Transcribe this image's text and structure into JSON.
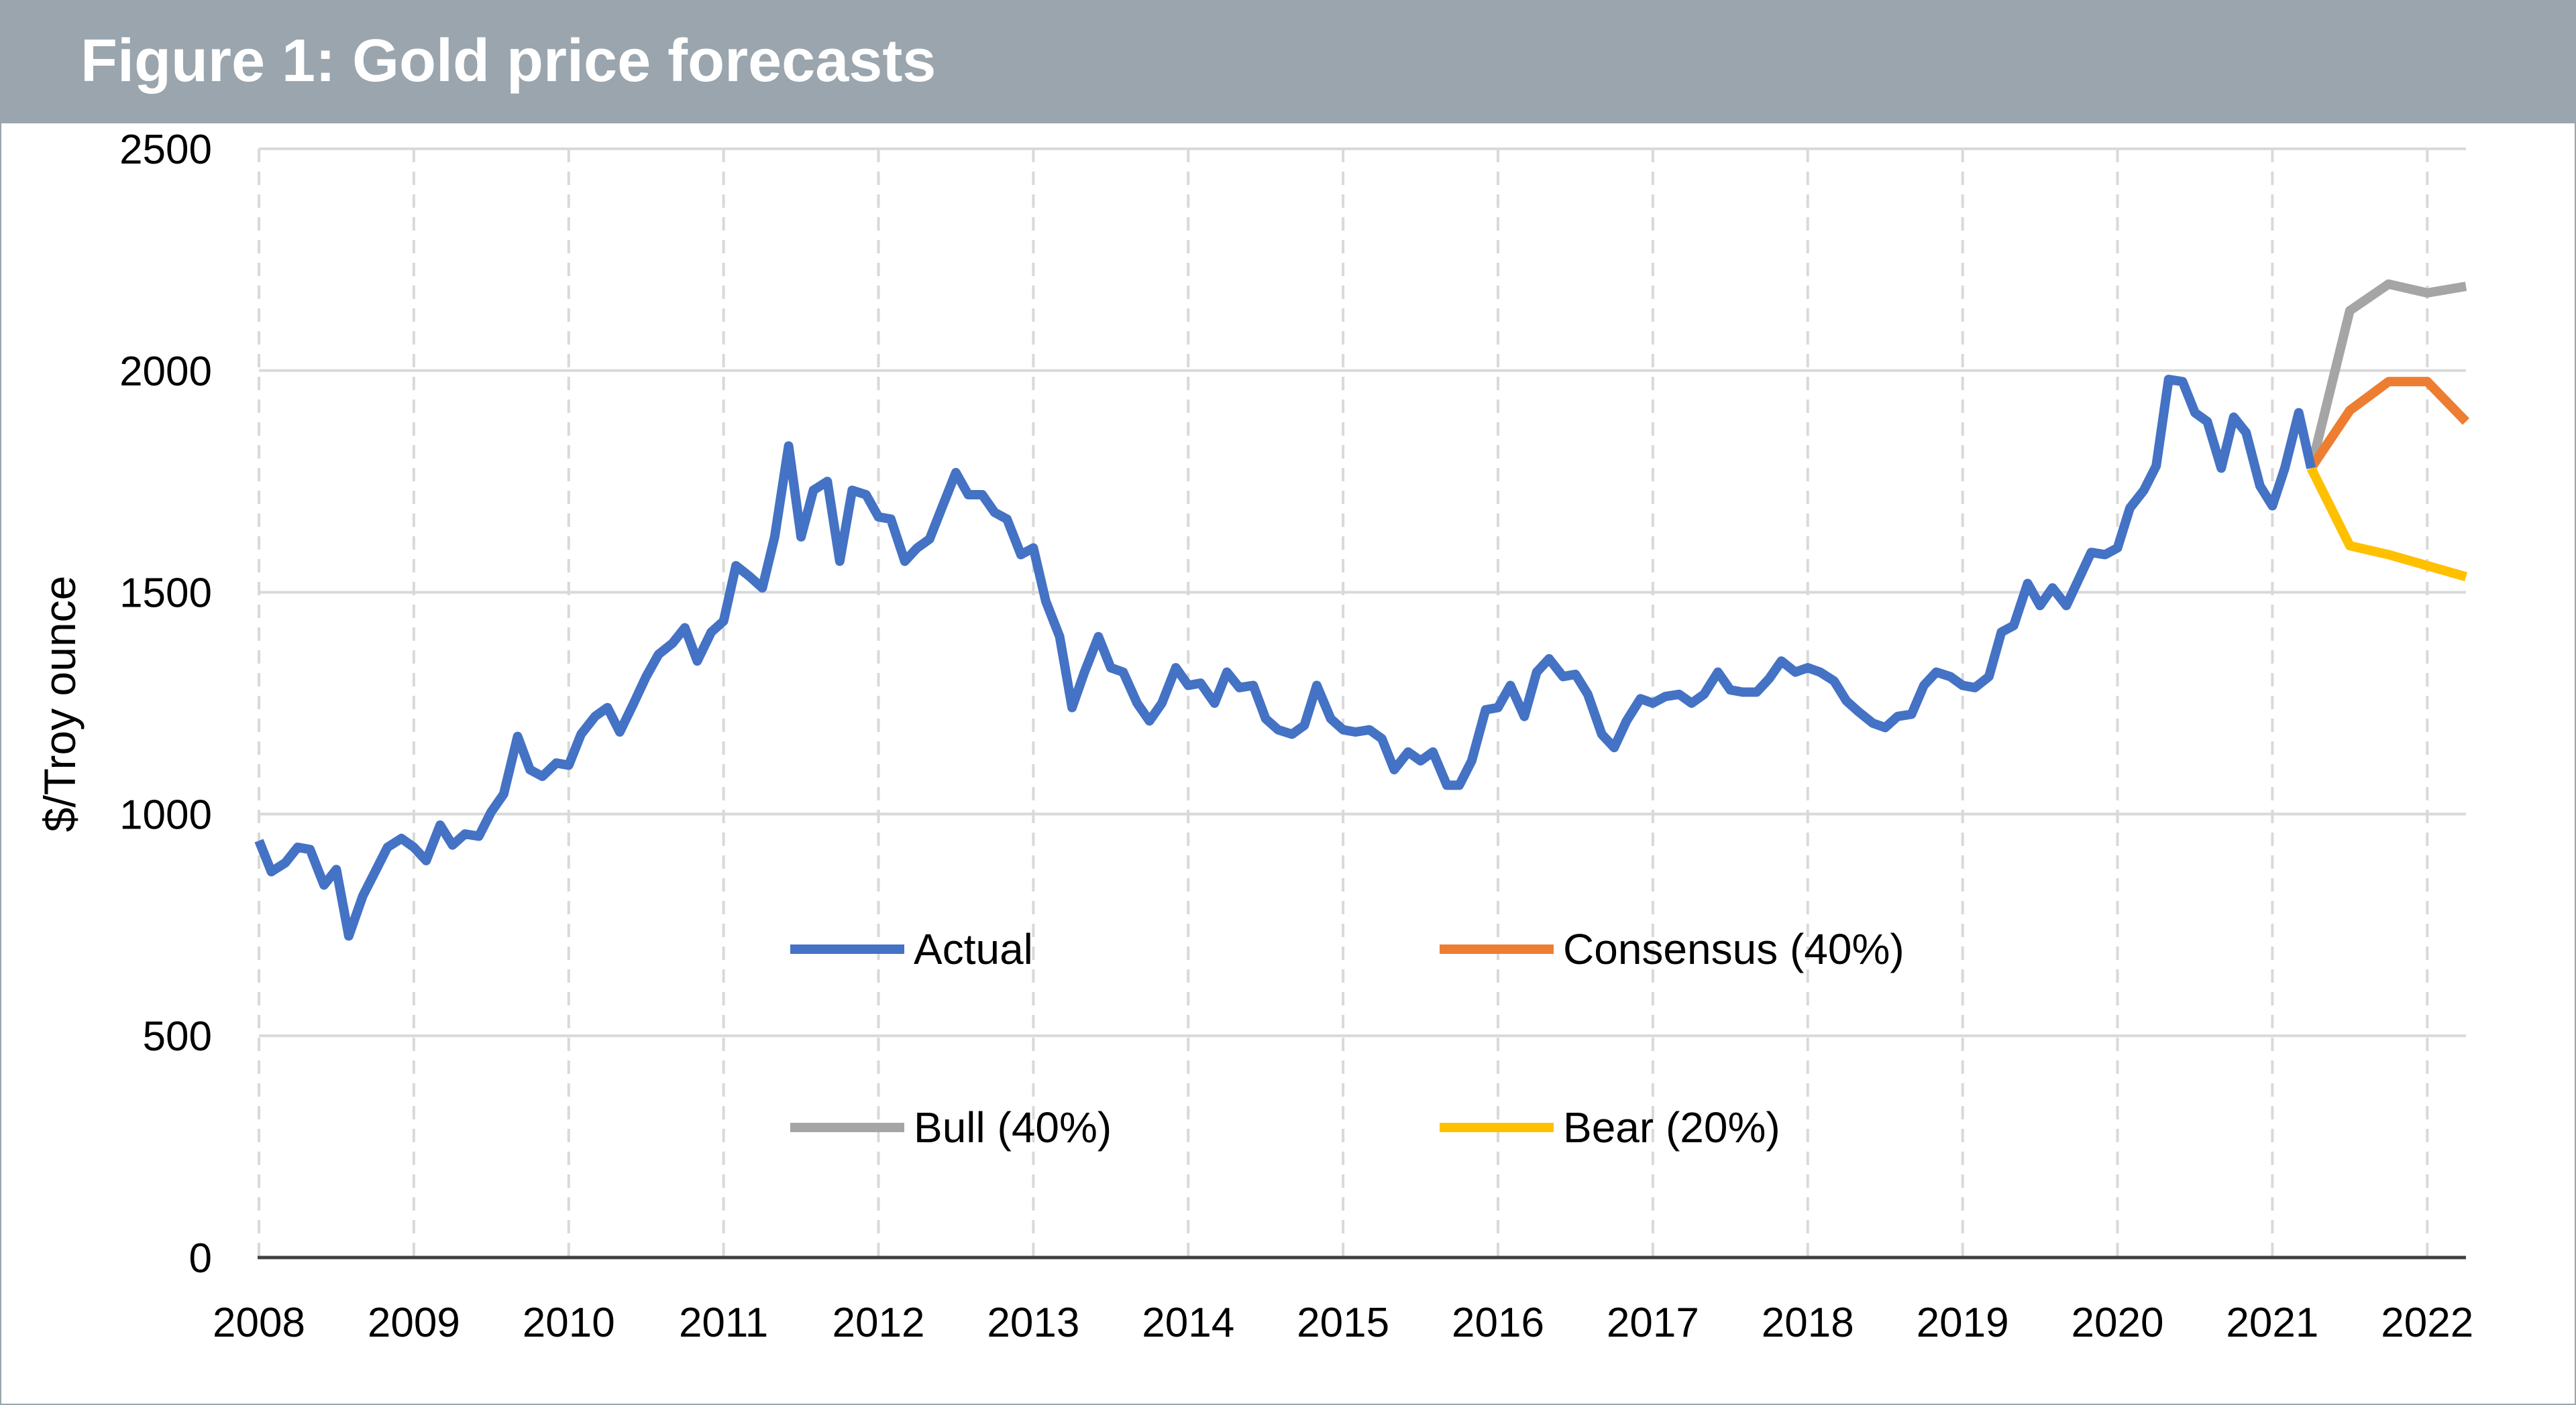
{
  "title": "Figure 1: Gold price forecasts",
  "colors": {
    "banner": "#9aa5ad",
    "actual": "#4472c4",
    "consensus": "#ed7d31",
    "bull": "#a5a5a5",
    "bear": "#ffc000"
  },
  "chart_data": {
    "type": "line",
    "ylabel": "$/Troy ounce",
    "xlabel": "",
    "ylim": [
      0,
      2500
    ],
    "xlim": [
      2008.0,
      2022.25
    ],
    "yticks": [
      0,
      500,
      1000,
      1500,
      2000,
      2500
    ],
    "xticks": [
      2008,
      2009,
      2010,
      2011,
      2012,
      2013,
      2014,
      2015,
      2016,
      2017,
      2018,
      2019,
      2020,
      2021,
      2022
    ],
    "grid": true,
    "legend_position": "center",
    "series": [
      {
        "name": "Actual",
        "color": "#4472c4",
        "x": [
          2008.0,
          2008.08,
          2008.17,
          2008.25,
          2008.33,
          2008.42,
          2008.5,
          2008.58,
          2008.67,
          2008.75,
          2008.83,
          2008.92,
          2009.0,
          2009.08,
          2009.17,
          2009.25,
          2009.33,
          2009.42,
          2009.5,
          2009.58,
          2009.67,
          2009.75,
          2009.83,
          2009.92,
          2010.0,
          2010.08,
          2010.17,
          2010.25,
          2010.33,
          2010.42,
          2010.5,
          2010.58,
          2010.67,
          2010.75,
          2010.83,
          2010.92,
          2011.0,
          2011.08,
          2011.17,
          2011.25,
          2011.33,
          2011.42,
          2011.5,
          2011.58,
          2011.67,
          2011.75,
          2011.83,
          2011.92,
          2012.0,
          2012.08,
          2012.17,
          2012.25,
          2012.33,
          2012.42,
          2012.5,
          2012.58,
          2012.67,
          2012.75,
          2012.83,
          2012.92,
          2013.0,
          2013.08,
          2013.17,
          2013.25,
          2013.33,
          2013.42,
          2013.5,
          2013.58,
          2013.67,
          2013.75,
          2013.83,
          2013.92,
          2014.0,
          2014.08,
          2014.17,
          2014.25,
          2014.33,
          2014.42,
          2014.5,
          2014.58,
          2014.67,
          2014.75,
          2014.83,
          2014.92,
          2015.0,
          2015.08,
          2015.17,
          2015.25,
          2015.33,
          2015.42,
          2015.5,
          2015.58,
          2015.67,
          2015.75,
          2015.83,
          2015.92,
          2016.0,
          2016.08,
          2016.17,
          2016.25,
          2016.33,
          2016.42,
          2016.5,
          2016.58,
          2016.67,
          2016.75,
          2016.83,
          2016.92,
          2017.0,
          2017.08,
          2017.17,
          2017.25,
          2017.33,
          2017.42,
          2017.5,
          2017.58,
          2017.67,
          2017.75,
          2017.83,
          2017.92,
          2018.0,
          2018.08,
          2018.17,
          2018.25,
          2018.33,
          2018.42,
          2018.5,
          2018.58,
          2018.67,
          2018.75,
          2018.83,
          2018.92,
          2019.0,
          2019.08,
          2019.17,
          2019.25,
          2019.33,
          2019.42,
          2019.5,
          2019.58,
          2019.67,
          2019.75,
          2019.83,
          2019.92,
          2020.0,
          2020.08,
          2020.17,
          2020.25,
          2020.33,
          2020.42,
          2020.5,
          2020.58,
          2020.67,
          2020.75,
          2020.83,
          2020.92,
          2021.0,
          2021.08,
          2021.17,
          2021.25
        ],
        "values": [
          940,
          870,
          890,
          925,
          920,
          840,
          875,
          725,
          815,
          870,
          925,
          945,
          925,
          895,
          975,
          930,
          955,
          950,
          1005,
          1045,
          1175,
          1100,
          1085,
          1115,
          1110,
          1180,
          1220,
          1240,
          1185,
          1250,
          1310,
          1360,
          1385,
          1420,
          1345,
          1410,
          1435,
          1560,
          1535,
          1510,
          1625,
          1830,
          1625,
          1730,
          1750,
          1570,
          1730,
          1720,
          1670,
          1665,
          1570,
          1600,
          1620,
          1700,
          1770,
          1720,
          1720,
          1680,
          1665,
          1585,
          1600,
          1480,
          1400,
          1240,
          1320,
          1400,
          1330,
          1320,
          1250,
          1210,
          1250,
          1330,
          1290,
          1295,
          1250,
          1320,
          1285,
          1290,
          1215,
          1190,
          1180,
          1200,
          1290,
          1215,
          1190,
          1185,
          1190,
          1170,
          1100,
          1140,
          1120,
          1140,
          1065,
          1065,
          1120,
          1235,
          1240,
          1290,
          1220,
          1320,
          1350,
          1310,
          1315,
          1270,
          1180,
          1150,
          1210,
          1260,
          1250,
          1265,
          1270,
          1250,
          1270,
          1320,
          1280,
          1275,
          1275,
          1305,
          1345,
          1320,
          1330,
          1320,
          1300,
          1255,
          1230,
          1205,
          1195,
          1220,
          1225,
          1290,
          1320,
          1310,
          1290,
          1285,
          1310,
          1410,
          1425,
          1520,
          1470,
          1510,
          1470,
          1530,
          1590,
          1585,
          1600,
          1690,
          1730,
          1785,
          1980,
          1975,
          1905,
          1885,
          1780,
          1895,
          1860,
          1740,
          1695,
          1780,
          1905,
          1780
        ]
      },
      {
        "name": "Consensus (40%)",
        "color": "#ed7d31",
        "x": [
          2021.25,
          2021.5,
          2021.75,
          2022.0,
          2022.25
        ],
        "values": [
          1780,
          1910,
          1975,
          1975,
          1885
        ]
      },
      {
        "name": "Bull (40%)",
        "color": "#a5a5a5",
        "x": [
          2021.25,
          2021.5,
          2021.75,
          2022.0,
          2022.25
        ],
        "values": [
          1780,
          2135,
          2195,
          2175,
          2190
        ]
      },
      {
        "name": "Bear (20%)",
        "color": "#ffc000",
        "x": [
          2021.25,
          2021.5,
          2021.75,
          2022.0,
          2022.25
        ],
        "values": [
          1780,
          1605,
          1585,
          1560,
          1535
        ]
      }
    ]
  }
}
